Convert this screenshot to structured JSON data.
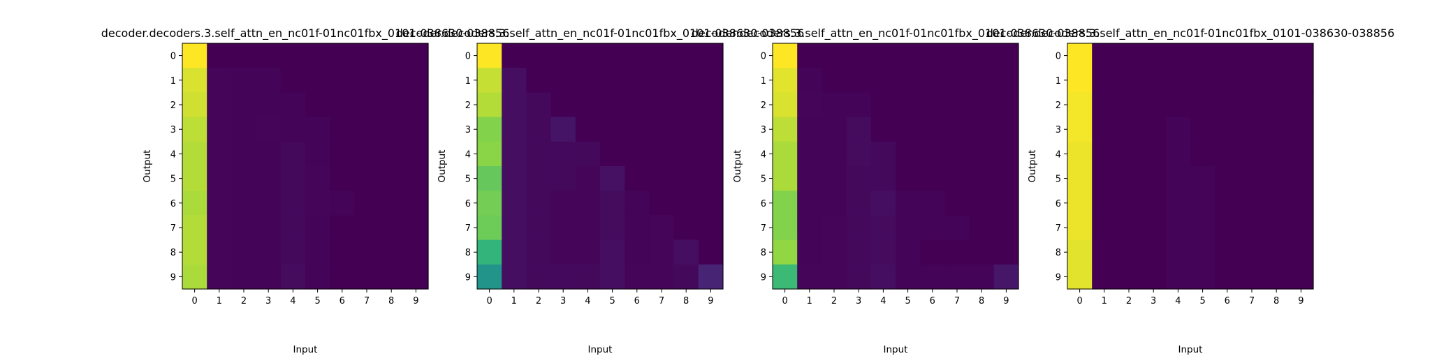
{
  "chart_data": [
    {
      "type": "heatmap",
      "title": "decoder.decoders.3.self_attn_en_nc01f-01nc01fbx_0101-038630-038856",
      "xlabel": "Input",
      "ylabel": "Output",
      "x_ticks": [
        "0",
        "1",
        "2",
        "3",
        "4",
        "5",
        "6",
        "7",
        "8",
        "9"
      ],
      "y_ticks": [
        "0",
        "1",
        "2",
        "3",
        "4",
        "5",
        "6",
        "7",
        "8",
        "9"
      ],
      "colormap": "viridis",
      "vmin": 0,
      "vmax": 1,
      "values": [
        [
          1.0,
          0.0,
          0.0,
          0.0,
          0.0,
          0.0,
          0.0,
          0.0,
          0.0,
          0.0
        ],
        [
          0.96,
          0.02,
          0.01,
          0.01,
          0.0,
          0.0,
          0.0,
          0.0,
          0.0,
          0.0
        ],
        [
          0.95,
          0.02,
          0.01,
          0.01,
          0.01,
          0.0,
          0.0,
          0.0,
          0.0,
          0.0
        ],
        [
          0.93,
          0.02,
          0.01,
          0.02,
          0.01,
          0.01,
          0.0,
          0.0,
          0.0,
          0.0
        ],
        [
          0.92,
          0.02,
          0.01,
          0.01,
          0.03,
          0.01,
          0.0,
          0.0,
          0.0,
          0.0
        ],
        [
          0.92,
          0.02,
          0.01,
          0.01,
          0.03,
          0.02,
          0.0,
          0.0,
          0.0,
          0.0
        ],
        [
          0.91,
          0.02,
          0.01,
          0.01,
          0.03,
          0.02,
          0.01,
          0.0,
          0.0,
          0.0
        ],
        [
          0.92,
          0.02,
          0.01,
          0.01,
          0.03,
          0.01,
          0.0,
          0.0,
          0.0,
          0.0
        ],
        [
          0.92,
          0.02,
          0.01,
          0.01,
          0.03,
          0.01,
          0.0,
          0.0,
          0.0,
          0.0
        ],
        [
          0.91,
          0.02,
          0.01,
          0.01,
          0.04,
          0.01,
          0.0,
          0.0,
          0.0,
          0.0
        ]
      ]
    },
    {
      "type": "heatmap",
      "title": "decoder.decoders.3.self_attn_en_nc01f-01nc01fbx_0101-038630-038856",
      "xlabel": "Input",
      "ylabel": "Output",
      "x_ticks": [
        "0",
        "1",
        "2",
        "3",
        "4",
        "5",
        "6",
        "7",
        "8",
        "9"
      ],
      "y_ticks": [
        "0",
        "1",
        "2",
        "3",
        "4",
        "5",
        "6",
        "7",
        "8",
        "9"
      ],
      "colormap": "viridis",
      "vmin": 0,
      "vmax": 1,
      "values": [
        [
          1.0,
          0.0,
          0.0,
          0.0,
          0.0,
          0.0,
          0.0,
          0.0,
          0.0,
          0.0
        ],
        [
          0.94,
          0.05,
          0.0,
          0.0,
          0.0,
          0.0,
          0.0,
          0.0,
          0.0,
          0.0
        ],
        [
          0.92,
          0.05,
          0.03,
          0.0,
          0.0,
          0.0,
          0.0,
          0.0,
          0.0,
          0.0
        ],
        [
          0.86,
          0.05,
          0.03,
          0.07,
          0.0,
          0.0,
          0.0,
          0.0,
          0.0,
          0.0
        ],
        [
          0.87,
          0.05,
          0.03,
          0.03,
          0.03,
          0.0,
          0.0,
          0.0,
          0.0,
          0.0
        ],
        [
          0.82,
          0.05,
          0.03,
          0.03,
          0.02,
          0.06,
          0.0,
          0.0,
          0.0,
          0.0
        ],
        [
          0.84,
          0.05,
          0.03,
          0.02,
          0.02,
          0.04,
          0.01,
          0.0,
          0.0,
          0.0
        ],
        [
          0.83,
          0.05,
          0.03,
          0.02,
          0.02,
          0.04,
          0.01,
          0.02,
          0.0,
          0.0
        ],
        [
          0.74,
          0.05,
          0.03,
          0.02,
          0.02,
          0.05,
          0.01,
          0.02,
          0.05,
          0.0
        ],
        [
          0.64,
          0.05,
          0.03,
          0.03,
          0.03,
          0.05,
          0.02,
          0.02,
          0.03,
          0.13
        ]
      ]
    },
    {
      "type": "heatmap",
      "title": "decoder.decoders.3.self_attn_en_nc01f-01nc01fbx_0101-038630-038856",
      "xlabel": "Input",
      "ylabel": "Output",
      "x_ticks": [
        "0",
        "1",
        "2",
        "3",
        "4",
        "5",
        "6",
        "7",
        "8",
        "9"
      ],
      "y_ticks": [
        "0",
        "1",
        "2",
        "3",
        "4",
        "5",
        "6",
        "7",
        "8",
        "9"
      ],
      "colormap": "viridis",
      "vmin": 0,
      "vmax": 1,
      "values": [
        [
          1.0,
          0.0,
          0.0,
          0.0,
          0.0,
          0.0,
          0.0,
          0.0,
          0.0,
          0.0
        ],
        [
          0.97,
          0.01,
          0.0,
          0.0,
          0.0,
          0.0,
          0.0,
          0.0,
          0.0,
          0.0
        ],
        [
          0.96,
          0.02,
          0.01,
          0.01,
          0.0,
          0.0,
          0.0,
          0.0,
          0.0,
          0.0
        ],
        [
          0.93,
          0.01,
          0.01,
          0.04,
          0.0,
          0.0,
          0.0,
          0.0,
          0.0,
          0.0
        ],
        [
          0.91,
          0.01,
          0.01,
          0.04,
          0.03,
          0.0,
          0.0,
          0.0,
          0.0,
          0.0
        ],
        [
          0.91,
          0.01,
          0.01,
          0.03,
          0.03,
          0.0,
          0.0,
          0.0,
          0.0,
          0.0
        ],
        [
          0.86,
          0.01,
          0.01,
          0.03,
          0.05,
          0.01,
          0.01,
          0.0,
          0.0,
          0.0
        ],
        [
          0.86,
          0.01,
          0.02,
          0.03,
          0.04,
          0.01,
          0.01,
          0.01,
          0.0,
          0.0
        ],
        [
          0.88,
          0.01,
          0.02,
          0.03,
          0.04,
          0.01,
          0.0,
          0.0,
          0.0,
          0.0
        ],
        [
          0.76,
          0.02,
          0.02,
          0.03,
          0.05,
          0.01,
          0.01,
          0.01,
          0.01,
          0.08
        ]
      ]
    },
    {
      "type": "heatmap",
      "title": "decoder.decoders.3.self_attn_en_nc01f-01nc01fbx_0101-038630-038856",
      "xlabel": "Input",
      "ylabel": "Output",
      "x_ticks": [
        "0",
        "1",
        "2",
        "3",
        "4",
        "5",
        "6",
        "7",
        "8",
        "9"
      ],
      "y_ticks": [
        "0",
        "1",
        "2",
        "3",
        "4",
        "5",
        "6",
        "7",
        "8",
        "9"
      ],
      "colormap": "viridis",
      "vmin": 0,
      "vmax": 1,
      "values": [
        [
          1.0,
          0.0,
          0.0,
          0.0,
          0.0,
          0.0,
          0.0,
          0.0,
          0.0,
          0.0
        ],
        [
          1.0,
          0.0,
          0.0,
          0.0,
          0.0,
          0.0,
          0.0,
          0.0,
          0.0,
          0.0
        ],
        [
          0.99,
          0.0,
          0.0,
          0.0,
          0.0,
          0.0,
          0.0,
          0.0,
          0.0,
          0.0
        ],
        [
          0.99,
          0.0,
          0.0,
          0.0,
          0.01,
          0.0,
          0.0,
          0.0,
          0.0,
          0.0
        ],
        [
          0.98,
          0.0,
          0.0,
          0.0,
          0.01,
          0.0,
          0.0,
          0.0,
          0.0,
          0.0
        ],
        [
          0.98,
          0.0,
          0.0,
          0.0,
          0.01,
          0.01,
          0.0,
          0.0,
          0.0,
          0.0
        ],
        [
          0.98,
          0.0,
          0.0,
          0.0,
          0.01,
          0.01,
          0.0,
          0.0,
          0.0,
          0.0
        ],
        [
          0.98,
          0.0,
          0.0,
          0.0,
          0.01,
          0.01,
          0.0,
          0.0,
          0.0,
          0.0
        ],
        [
          0.97,
          0.0,
          0.0,
          0.0,
          0.01,
          0.01,
          0.0,
          0.0,
          0.0,
          0.0
        ],
        [
          0.97,
          0.0,
          0.0,
          0.0,
          0.01,
          0.01,
          0.0,
          0.0,
          0.0,
          0.0
        ]
      ]
    }
  ]
}
